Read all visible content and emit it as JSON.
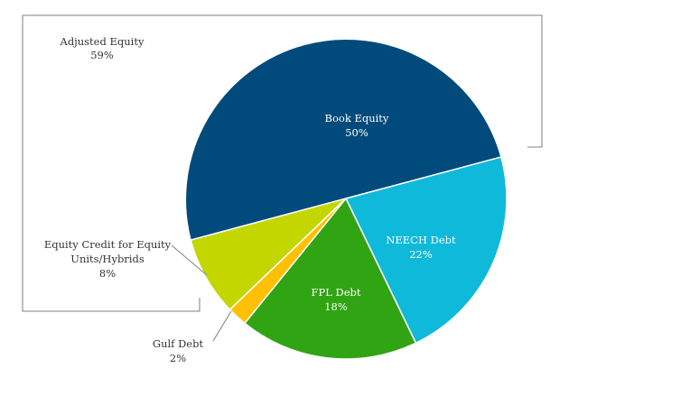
{
  "chart_data": {
    "type": "pie",
    "slices": [
      {
        "name": "Book Equity",
        "value": 50,
        "value_label": "50%",
        "color": "#004b7b"
      },
      {
        "name": "NEECH  Debt",
        "value": 22,
        "value_label": "22%",
        "color": "#0fb9d9"
      },
      {
        "name": "FPL Debt",
        "value": 18,
        "value_label": "18%",
        "color": "#31a414"
      },
      {
        "name": "Gulf Debt",
        "value": 2,
        "value_label": "2%",
        "color": "#ffc000"
      },
      {
        "name": "Equity Credit for Equity Units/Hybrids",
        "value": 8,
        "value_label": "8%",
        "color": "#c3d600"
      }
    ],
    "group_annotation": {
      "name": "Adjusted Equity",
      "value_label": "59%"
    },
    "labels": {
      "book_equity": [
        "Book Equity",
        "50%"
      ],
      "neech": [
        "NEECH  Debt",
        "22%"
      ],
      "fpl": [
        "FPL Debt",
        "18%"
      ],
      "gulf": [
        "Gulf Debt",
        "2%"
      ],
      "equity_credit": [
        "Equity Credit for Equity",
        "Units/Hybrids",
        "8%"
      ],
      "adjusted": [
        "Adjusted Equity",
        "59%"
      ]
    }
  }
}
